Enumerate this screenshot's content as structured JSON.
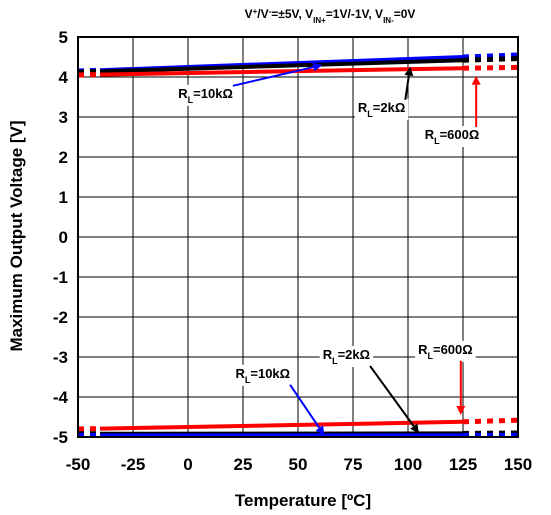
{
  "chart_data": {
    "type": "line",
    "subtitle_parts": [
      "V",
      "+",
      "/V",
      "-",
      "=±5V, V",
      "IN+",
      "=1V/-1V, V",
      "IN-",
      "=0V"
    ],
    "xlabel": "Temperature [ºC]",
    "ylabel": "Maximum Output Voltage [V]",
    "xlim": [
      -50,
      150
    ],
    "ylim": [
      -5,
      5
    ],
    "x_ticks": [
      -50,
      -25,
      0,
      25,
      50,
      75,
      100,
      125,
      150
    ],
    "y_ticks": [
      5,
      4,
      3,
      2,
      1,
      0,
      -1,
      -2,
      -3,
      -4,
      -5
    ],
    "grid": true,
    "colors": {
      "r600": "#ff0000",
      "r2k": "#000000",
      "r10k": "#0000ff"
    },
    "series": [
      {
        "name": "RL=10kΩ (high)",
        "color": "#0000ff",
        "x": [
          -40,
          125
        ],
        "values": [
          4.17,
          4.5
        ],
        "extrap_x": [
          -50,
          150
        ],
        "extrap_values": [
          4.15,
          4.55
        ]
      },
      {
        "name": "RL=2kΩ (high)",
        "color": "#000000",
        "x": [
          -40,
          125
        ],
        "values": [
          4.14,
          4.42
        ],
        "extrap_x": [
          -50,
          150
        ],
        "extrap_values": [
          4.12,
          4.46
        ]
      },
      {
        "name": "RL=600Ω (high)",
        "color": "#ff0000",
        "x": [
          -40,
          125
        ],
        "values": [
          4.06,
          4.22
        ],
        "extrap_x": [
          -50,
          150
        ],
        "extrap_values": [
          4.05,
          4.24
        ]
      },
      {
        "name": "RL=600Ω (low)",
        "color": "#ff0000",
        "x": [
          -40,
          125
        ],
        "values": [
          -4.79,
          -4.62
        ],
        "extrap_x": [
          -50,
          150
        ],
        "extrap_values": [
          -4.8,
          -4.58
        ]
      },
      {
        "name": "RL=2kΩ (low)",
        "color": "#000000",
        "x": [
          -40,
          125
        ],
        "values": [
          -4.92,
          -4.91
        ],
        "extrap_x": [
          -50,
          150
        ],
        "extrap_values": [
          -4.92,
          -4.9
        ]
      },
      {
        "name": "RL=10kΩ (low)",
        "color": "#0000ff",
        "x": [
          -40,
          125
        ],
        "values": [
          -4.96,
          -4.96
        ],
        "extrap_x": [
          -50,
          150
        ],
        "extrap_values": [
          -4.96,
          -4.96
        ]
      }
    ],
    "annotations": [
      {
        "id": "hi-10k",
        "main": "R",
        "sub": "L",
        "rest": "=10kΩ",
        "text_x": 8,
        "text_y": 3.48,
        "arrow_to": [
          61,
          4.3
        ],
        "color": "#0000ff"
      },
      {
        "id": "hi-2k",
        "main": "R",
        "sub": "L",
        "rest": "=2kΩ",
        "text_x": 88,
        "text_y": 3.13,
        "arrow_to": [
          101,
          4.26
        ],
        "color": "#000000"
      },
      {
        "id": "hi-600",
        "main": "R",
        "sub": "L",
        "rest": "=600Ω",
        "text_x": 120,
        "text_y": 2.45,
        "arrow_to": [
          131,
          4.03
        ],
        "color": "#ff0000"
      },
      {
        "id": "lo-10k",
        "main": "R",
        "sub": "L",
        "rest": "=10kΩ",
        "text_x": 34,
        "text_y": -3.52,
        "arrow_to": [
          62,
          -4.96
        ],
        "color": "#0000ff"
      },
      {
        "id": "lo-2k",
        "main": "R",
        "sub": "L",
        "rest": "=2kΩ",
        "text_x": 72,
        "text_y": -3.05,
        "arrow_to": [
          105,
          -4.91
        ],
        "color": "#000000"
      },
      {
        "id": "lo-600",
        "main": "R",
        "sub": "L",
        "rest": "=600Ω",
        "text_x": 117,
        "text_y": -2.92,
        "arrow_to": [
          124,
          -4.45
        ],
        "color": "#ff0000"
      }
    ]
  }
}
